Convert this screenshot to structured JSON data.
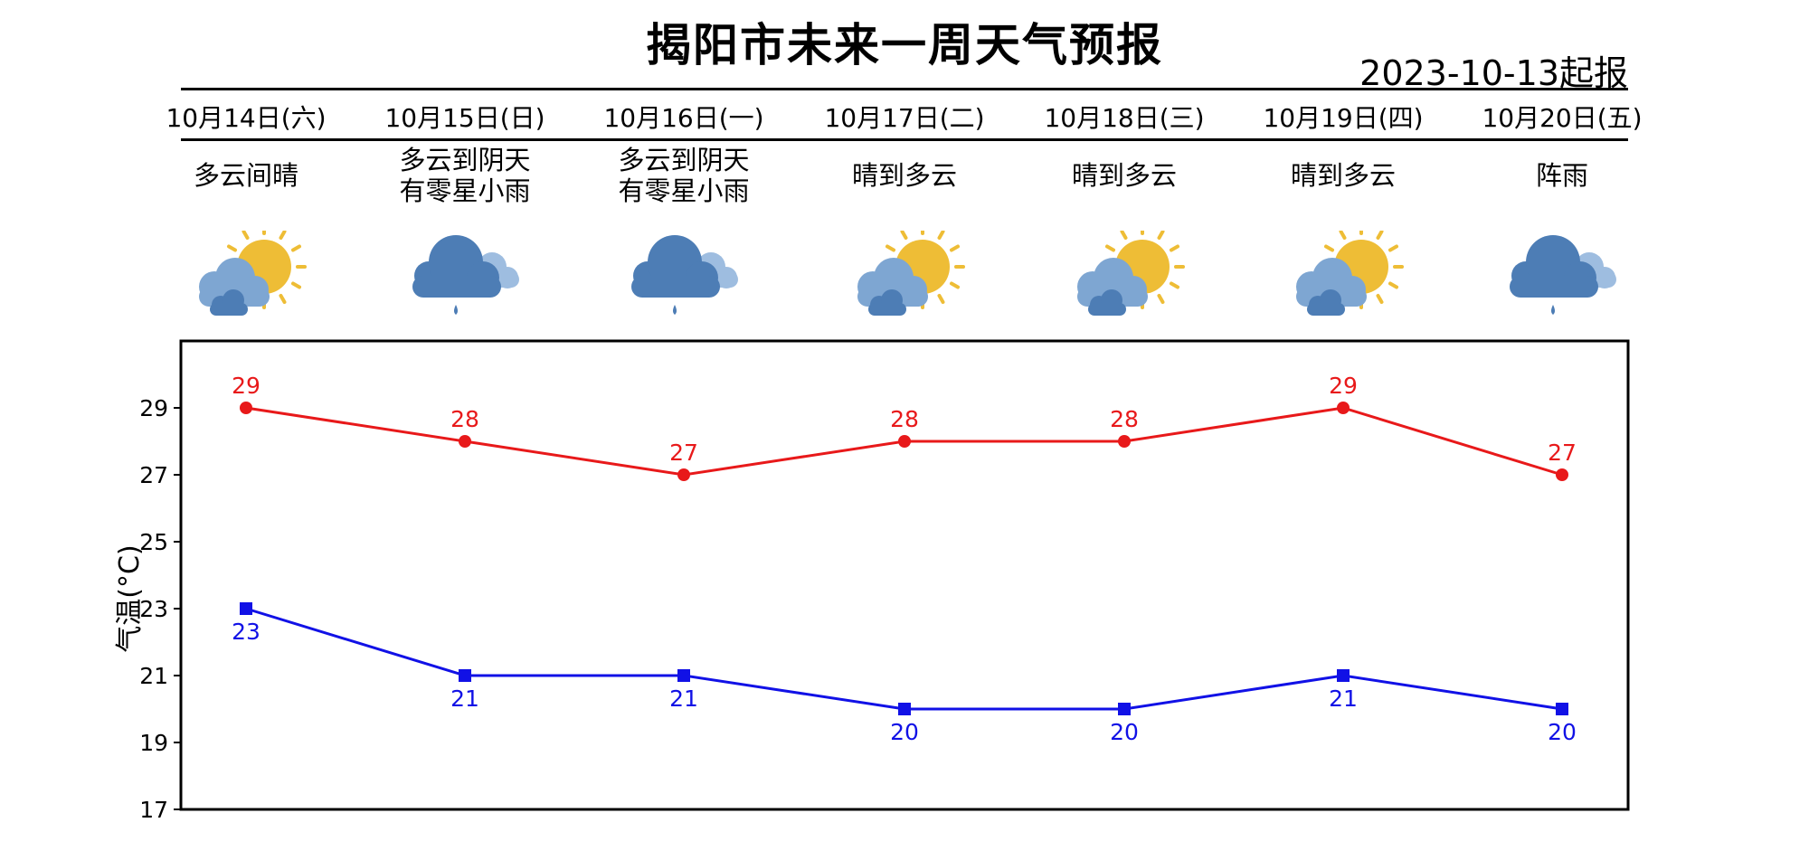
{
  "title": "揭阳市未来一周天气预报",
  "issued": "2023-10-13起报",
  "days": [
    {
      "date": "10月14日(六)",
      "weather": [
        "多云间晴"
      ],
      "icon": "partly-cloudy-sun-icon"
    },
    {
      "date": "10月15日(日)",
      "weather": [
        "多云到阴天",
        "有零星小雨"
      ],
      "icon": "cloud-rain-icon"
    },
    {
      "date": "10月16日(一)",
      "weather": [
        "多云到阴天",
        "有零星小雨"
      ],
      "icon": "cloud-rain-icon"
    },
    {
      "date": "10月17日(二)",
      "weather": [
        "晴到多云"
      ],
      "icon": "partly-cloudy-sun-icon"
    },
    {
      "date": "10月18日(三)",
      "weather": [
        "晴到多云"
      ],
      "icon": "partly-cloudy-sun-icon"
    },
    {
      "date": "10月19日(四)",
      "weather": [
        "晴到多云"
      ],
      "icon": "partly-cloudy-sun-icon"
    },
    {
      "date": "10月20日(五)",
      "weather": [
        "阵雨"
      ],
      "icon": "cloud-rain-icon"
    }
  ],
  "colors": {
    "high": "#e8191a",
    "low": "#1111e6",
    "sun": "#eebd36",
    "cloud_light": "#7ea6d2",
    "cloud_dark": "#4d7db5"
  },
  "chart_data": {
    "type": "line",
    "categories": [
      "10月14日(六)",
      "10月15日(日)",
      "10月16日(一)",
      "10月17日(二)",
      "10月18日(三)",
      "10月19日(四)",
      "10月20日(五)"
    ],
    "series": [
      {
        "values": [
          29,
          28,
          27,
          28,
          28,
          29,
          27
        ],
        "color": "#e8191a",
        "marker": "circle"
      },
      {
        "values": [
          23,
          21,
          21,
          20,
          20,
          21,
          20
        ],
        "color": "#1111e6",
        "marker": "square"
      }
    ],
    "ylabel": "气温(°C)",
    "ylim": [
      17,
      31
    ],
    "yticks": [
      17,
      19,
      21,
      23,
      25,
      27,
      29
    ],
    "grid": false
  }
}
